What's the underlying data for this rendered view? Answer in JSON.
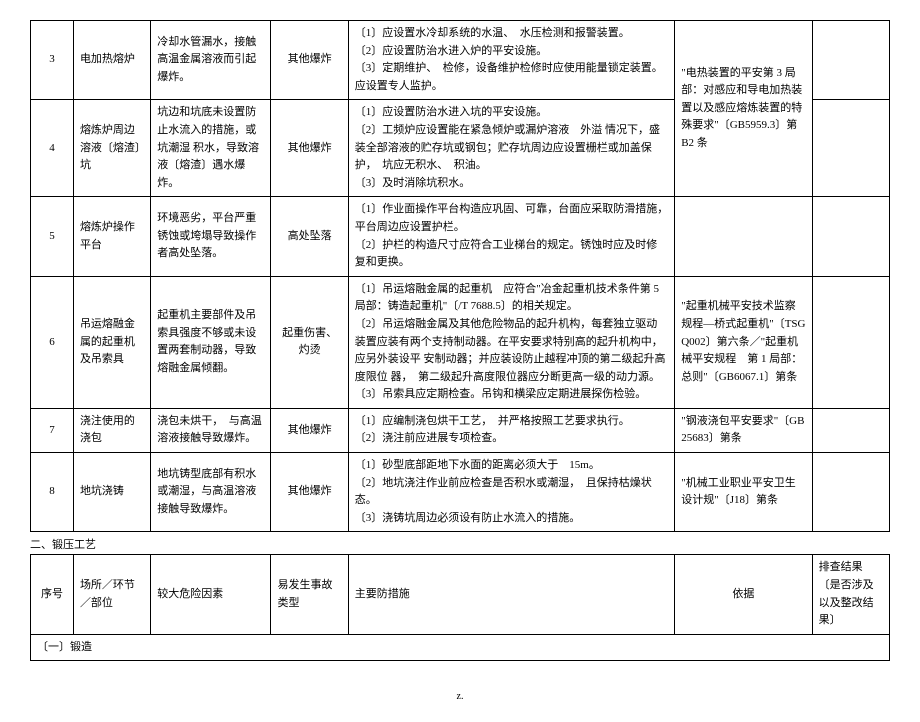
{
  "table1": {
    "rows": [
      {
        "num": "3",
        "place": "电加热熔炉",
        "factor": "冷却水管漏水，接触 高温金属溶液而引起爆炸。",
        "type": "其他爆炸",
        "measure": "〔1〕应设置水冷却系统的水温、　水压检测和报警装置。\n〔2〕应设置防治水进入炉的平安设施。\n〔3〕定期维护、　检修，设备维护检修时应使用能量锁定装置。应设置专人监护。",
        "basis": "\"电热装置的平安第 3 局部：对感应和导电加热装置以及感应熔炼装置的特殊要求\"〔GB5959.3〕第 B2 条"
      },
      {
        "num": "4",
        "place": "熔炼炉周边溶液〔熔渣〕坑",
        "factor": "坑边和坑底未设置防止水流入的措施，或坑潮湿 积水，导致溶液〔熔渣〕遇水爆炸。",
        "type": "其他爆炸",
        "measure": "〔1〕应设置防治水进入坑的平安设施。\n〔2〕工频炉应设置能在紧急倾炉或漏炉溶液　外溢 情况下，盛装全部溶液的贮存坑或钢包；贮存坑周边应设置栅栏或加盖保护，　坑应无积水、　积油。\n〔3〕及时消除坑积水。",
        "basis": ""
      },
      {
        "num": "5",
        "place": "熔炼炉操作平台",
        "factor": "环境恶劣，平台严重锈蚀或垮塌导致操作者高处坠落。",
        "type": "高处坠落",
        "measure": "〔1〕作业面操作平台构造应巩固、可靠，台面应采取防滑措施，　平台周边应设置护栏。\n〔2〕护栏的构造尺寸应符合工业梯台的规定。锈蚀时应及时修复和更换。",
        "basis": ""
      },
      {
        "num": "6",
        "place": "吊运熔融金属的起重机及吊索具",
        "factor": "起重机主要部件及吊 索具强度不够或未设 置两套制动器，导致 熔融金属倾翻。",
        "type": "起重伤害、灼烫",
        "measure": "〔1〕吊运熔融金属的起重机　应符合\"冶金起重机技术条件第 5 局部：铸造起重机\"〔/T 7688.5〕的相关规定。\n〔2〕吊运熔融金属及其他危险物品的起升机构，每套独立驱动装置应装有两个支持制动器。在平安要求特别高的起升机构中，　应另外装设平 安制动器；并应装设防止越程冲顶的第二级起升高度限位 器，　第二级起升高度限位器应分断更高一级的动力源。\n〔3〕吊索具应定期检查。吊钩和横梁应定期进展探伤检验。",
        "basis": "\"起重机械平安技术监察规程—桥式起重机\"〔TSG Q002〕第六条／\"起重机械平安规程　第 1 局部：总则\"〔GB6067.1〕第条"
      },
      {
        "num": "7",
        "place": "浇注使用的浇包",
        "factor": "浇包未烘干，　与高温 溶液接触导致爆炸。",
        "type": "其他爆炸",
        "measure": "〔1〕应编制浇包烘干工艺，　并严格按照工艺要求执行。\n〔2〕浇注前应进展专项检查。",
        "basis": "\"钢液浇包平安要求\"〔GB 25683〕第条"
      },
      {
        "num": "8",
        "place": "地坑浇铸",
        "factor": "地坑铸型底部有积水 或潮湿，与高温溶液 接触导致爆炸。",
        "type": "其他爆炸",
        "measure": "〔1〕砂型底部距地下水面的距离必须大于　15m。\n〔2〕地坑浇注作业前应检查是否积水或潮湿，　且保持枯燥状态。\n〔3〕浇铸坑周边必须设有防止水流入的措施。",
        "basis": "\"机械工业职业平安卫生设计规\"〔J18〕第条"
      }
    ]
  },
  "section2_title": "二、锻压工艺",
  "table2_headers": {
    "num": "序号",
    "place": "场所／环节／部位",
    "factor": "较大危险因素",
    "type": "易发生事故类型",
    "measure": "主要防措施",
    "basis": "依据",
    "result": "排查结果〔是否涉及以及整改结果〕"
  },
  "sub1": "〔一〕锻造",
  "footer": "z."
}
